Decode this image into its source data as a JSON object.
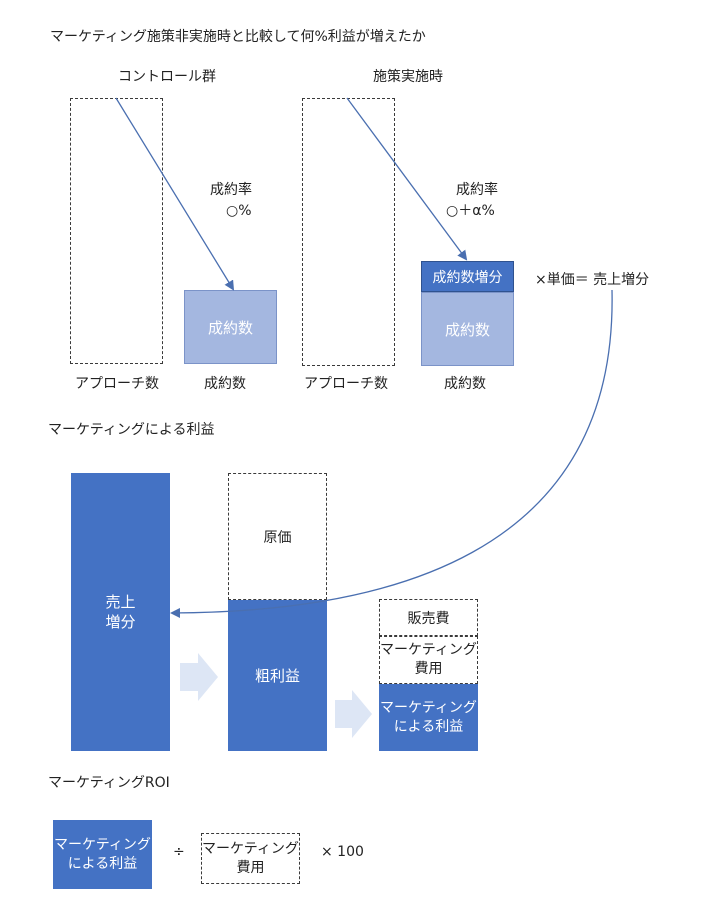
{
  "colors": {
    "primary": "#4472c4",
    "light": "#a4b7e0",
    "pale_arrow": "#dde6f5",
    "line": "#4a6fb0"
  },
  "heading": "マーケティング施策非実施時と比較して何%利益が増えたか",
  "top": {
    "control": {
      "title": "コントロール群",
      "rate_label": "成約率",
      "rate_value": "○%",
      "box_label": "成約数",
      "approach_label": "アプローチ数",
      "contract_label": "成約数"
    },
    "treatment": {
      "title": "施策実施時",
      "rate_label": "成約率",
      "rate_value": "○＋α%",
      "increase_label": "成約数増分",
      "box_label": "成約数",
      "approach_label": "アプローチ数",
      "contract_label": "成約数"
    },
    "formula": "×単価＝ 売上増分"
  },
  "profit_section": {
    "title": "マーケティングによる利益",
    "sales_increase": "売上\n増分",
    "cost": "原価",
    "gross_profit": "粗利益",
    "sga": "販売費",
    "marketing_cost": "マーケティング\n費用",
    "marketing_profit": "マーケティング\nによる利益"
  },
  "roi_section": {
    "title": "マーケティングROI",
    "numerator": "マーケティング\nによる利益",
    "divide": "÷",
    "denominator": "マーケティング\n費用",
    "multiply": "× 100"
  }
}
